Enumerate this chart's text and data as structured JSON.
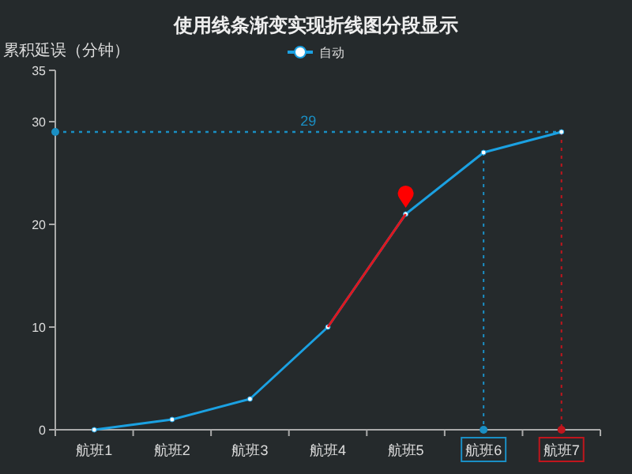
{
  "chart_data": {
    "type": "line",
    "title": "使用线条渐变实现折线图分段显示",
    "ylabel": "累积延误（分钟）",
    "categories": [
      "航班1",
      "航班2",
      "航班3",
      "航班4",
      "航班5",
      "航班6",
      "航班7"
    ],
    "series": [
      {
        "name": "自动",
        "color": "#1ba1e2",
        "values": [
          0,
          1,
          3,
          10,
          21,
          27,
          29
        ]
      },
      {
        "color": "#e0161d",
        "marker": "none",
        "values": [
          null,
          null,
          null,
          10,
          21,
          null,
          null
        ]
      }
    ],
    "ylim": [
      0,
      35
    ],
    "yticks": [
      0,
      10,
      20,
      30,
      35
    ],
    "grid": false,
    "legend": "top",
    "marker": "circle",
    "line_style": "solid",
    "ref_lines": [
      {
        "axis": "y",
        "value": 29,
        "label": "29",
        "color": "#1a8fc4",
        "line_style": "dotted"
      },
      {
        "axis": "x",
        "value": "航班6",
        "color": "#1a8fc4",
        "line_style": "dotted"
      },
      {
        "axis": "x",
        "value": "航班7",
        "color": "#c0161d",
        "line_style": "dotted"
      }
    ]
  }
}
